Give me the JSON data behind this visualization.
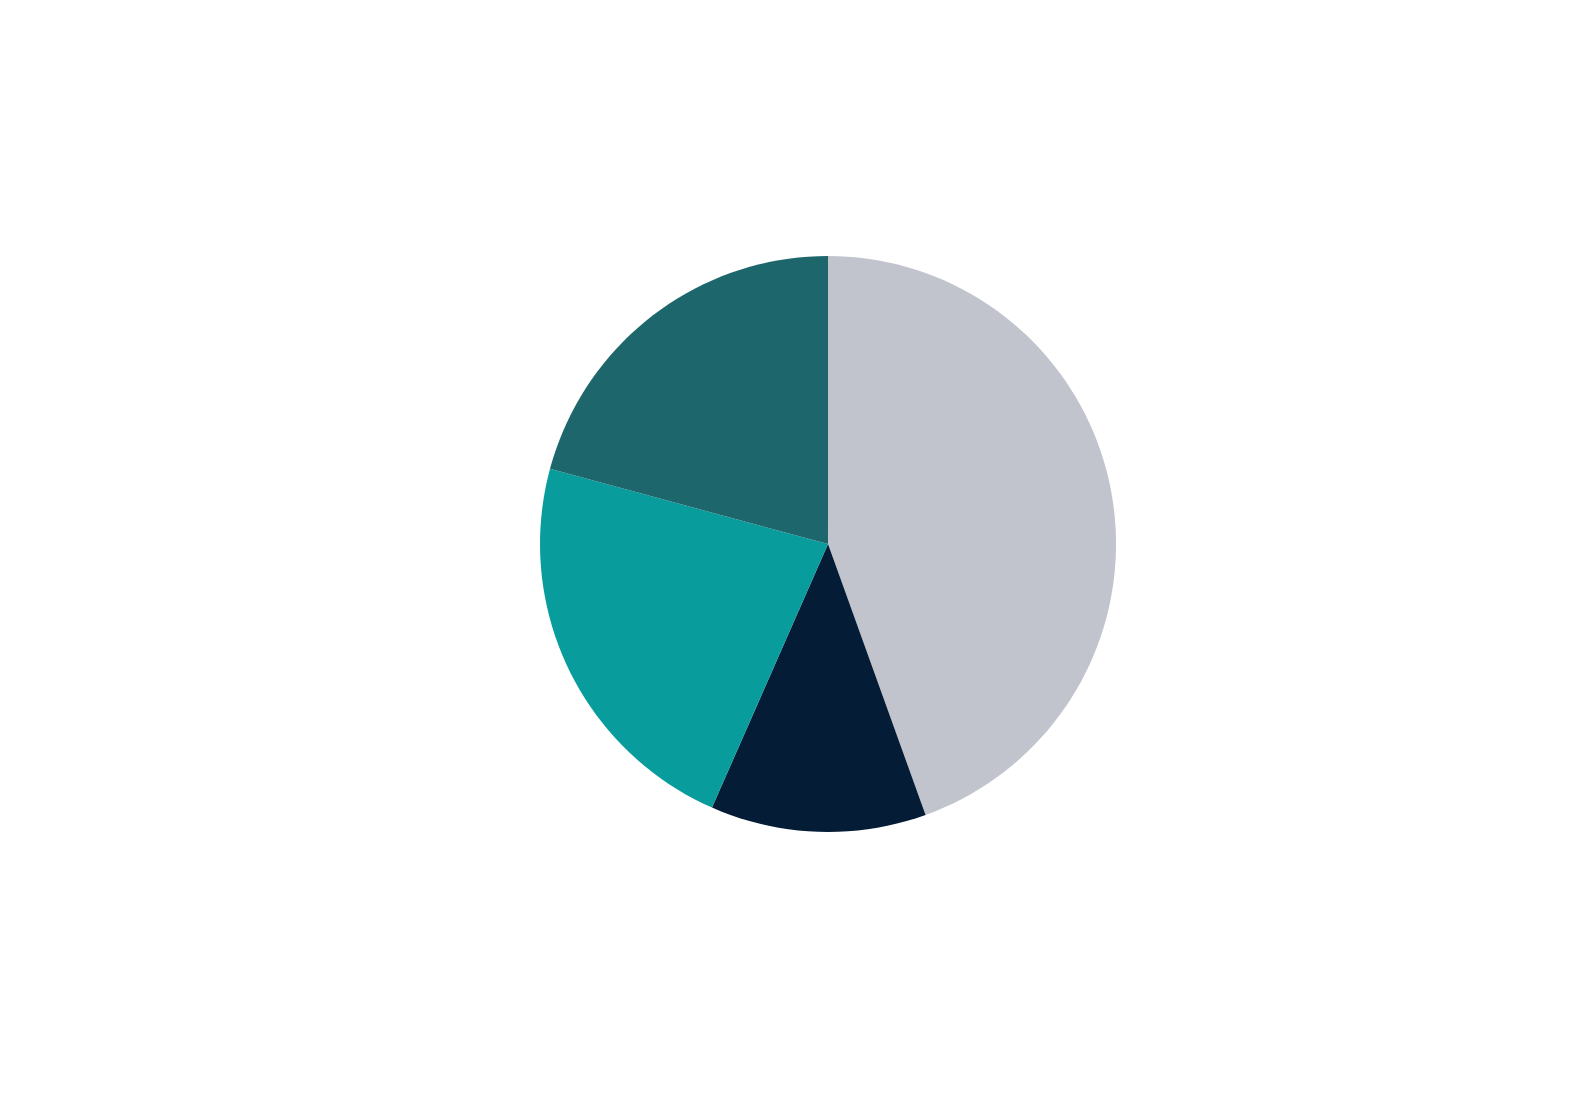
{
  "chart_data": {
    "type": "pie",
    "categories": [
      null,
      null,
      null,
      null
    ],
    "values": [
      44.5,
      12.1,
      22.6,
      20.8
    ],
    "colors": [
      "#c2c4cd",
      "#041c35",
      "#089c9c",
      "#1d676c"
    ]
  }
}
